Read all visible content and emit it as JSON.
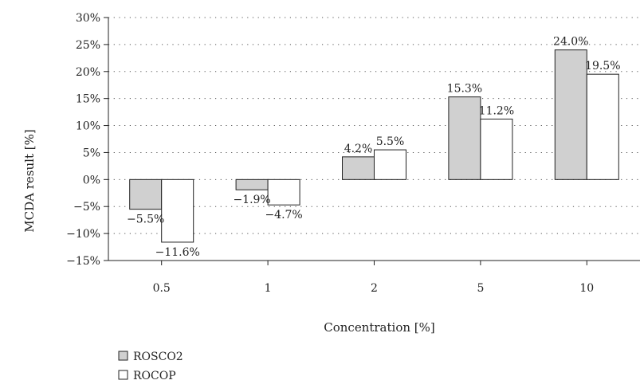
{
  "chart_data": {
    "type": "bar",
    "categories": [
      "0.5",
      "1",
      "2",
      "5",
      "10"
    ],
    "series": [
      {
        "name": "ROSCO2",
        "values": [
          -5.5,
          -1.9,
          4.2,
          15.3,
          24.0
        ],
        "labels": [
          "−5.5%",
          "−1.9%",
          "4.2%",
          "15.3%",
          "24.0%"
        ],
        "color": "#d0d0d0"
      },
      {
        "name": "ROCOP",
        "values": [
          -11.6,
          -4.7,
          5.5,
          11.2,
          19.5
        ],
        "labels": [
          "−11.6%",
          "−4.7%",
          "5.5%",
          "11.2%",
          "19.5%"
        ],
        "color": "#ffffff"
      }
    ],
    "xlabel": "Concentration [%]",
    "ylabel": "MCDA result [%]",
    "ylim": [
      -15,
      30
    ],
    "yticks": [
      -15,
      -10,
      -5,
      0,
      5,
      10,
      15,
      20,
      25,
      30
    ],
    "ytick_labels": [
      "−15%",
      "−10%",
      "−5%",
      "0%",
      "5%",
      "10%",
      "15%",
      "20%",
      "25%",
      "30%"
    ],
    "grid": "horizontal-dotted",
    "legend_position": "bottom-left",
    "colors": {
      "edge": "#222222"
    }
  }
}
